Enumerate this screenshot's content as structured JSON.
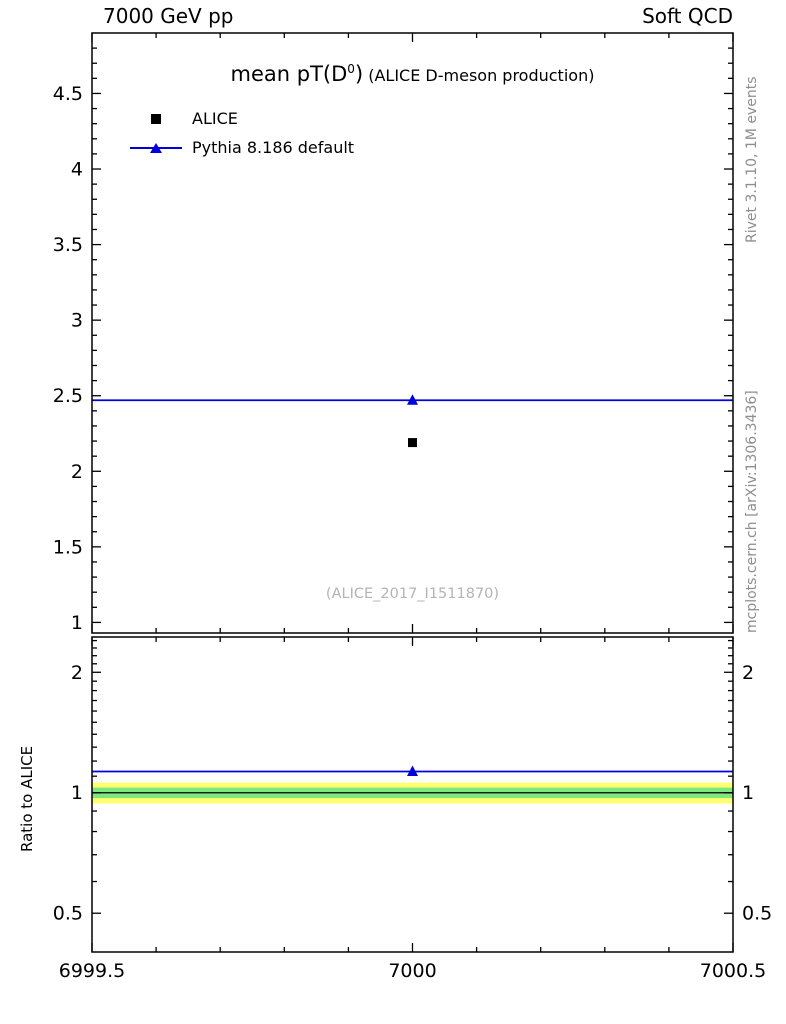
{
  "header": {
    "left": "7000 GeV pp",
    "right": "Soft QCD"
  },
  "title": {
    "main": "mean pT(D",
    "sup": "0",
    "close": ")",
    "sub": " (ALICE D-meson production)"
  },
  "legend": [
    {
      "label": "ALICE",
      "marker": "black-square"
    },
    {
      "label": "Pythia 8.186 default",
      "marker": "blue-line-triangle"
    }
  ],
  "watermark": "(ALICE_2017_I1511870)",
  "side_notes": {
    "top": "Rivet 3.1.10,  1M events",
    "bottom": "mcplots.cern.ch [arXiv:1306.3436]"
  },
  "ratio_axis_title": "Ratio to ALICE",
  "colors": {
    "accent_blue": "#0000dd",
    "band_yellow": "#ffff70",
    "band_green": "#7de87d",
    "frame": "#000000",
    "note_gray": "#8e8e8e",
    "watermark_gray": "#b4b4b4"
  },
  "chart_data": [
    {
      "name": "main",
      "type": "scatter",
      "title": "mean pT(D0) (ALICE D-meson production)",
      "x_range": [
        6999.5,
        7000.5
      ],
      "x_ticks": [
        {
          "v": 6999.5,
          "label": ""
        },
        {
          "v": 7000,
          "label": ""
        },
        {
          "v": 7000.5,
          "label": ""
        }
      ],
      "x_minor_step": 0.1,
      "y_scale": "linear",
      "y_range": [
        0.93,
        4.9
      ],
      "y_ticks": [
        {
          "v": 1,
          "label": "1"
        },
        {
          "v": 1.5,
          "label": "1.5"
        },
        {
          "v": 2,
          "label": "2"
        },
        {
          "v": 2.5,
          "label": "2.5"
        },
        {
          "v": 3,
          "label": "3"
        },
        {
          "v": 3.5,
          "label": "3.5"
        },
        {
          "v": 4,
          "label": "4"
        },
        {
          "v": 4.5,
          "label": "4.5"
        }
      ],
      "y_minor_step": 0.1,
      "series": [
        {
          "name": "ALICE",
          "marker": "square",
          "color": "#000000",
          "points": [
            {
              "x": 7000,
              "y": 2.19
            }
          ]
        },
        {
          "name": "Pythia 8.186 default",
          "marker": "triangle",
          "color": "#0000dd",
          "points": [
            {
              "x": 7000,
              "y": 2.47
            }
          ],
          "hline": 2.47
        }
      ]
    },
    {
      "name": "ratio",
      "type": "ratio",
      "ylabel": "Ratio to ALICE",
      "x_range": [
        6999.5,
        7000.5
      ],
      "x_ticks": [
        {
          "v": 6999.5,
          "label": "6999.5"
        },
        {
          "v": 7000,
          "label": "7000"
        },
        {
          "v": 7000.5,
          "label": "7000.5"
        }
      ],
      "x_minor_step": 0.1,
      "y_scale": "log",
      "y_range": [
        0.4,
        2.45
      ],
      "y_ticks": [
        {
          "v": 0.5,
          "label": "0.5"
        },
        {
          "v": 1,
          "label": "1"
        },
        {
          "v": 2,
          "label": "2"
        }
      ],
      "y_minor_ticks": [
        0.6,
        0.7,
        0.8,
        0.9,
        1.1,
        1.2,
        1.3,
        1.4,
        1.5,
        1.6,
        1.7,
        1.8,
        1.9,
        2.1,
        2.2,
        2.3,
        2.4
      ],
      "reference_line": 1,
      "bands": [
        {
          "lo": 0.94,
          "hi": 1.06,
          "color": "#ffff70"
        },
        {
          "lo": 0.97,
          "hi": 1.03,
          "color": "#7de87d"
        }
      ],
      "series": [
        {
          "name": "Pythia 8.186 default",
          "marker": "triangle",
          "color": "#0000dd",
          "points": [
            {
              "x": 7000,
              "y": 1.13
            }
          ],
          "hline": 1.13
        }
      ]
    }
  ]
}
